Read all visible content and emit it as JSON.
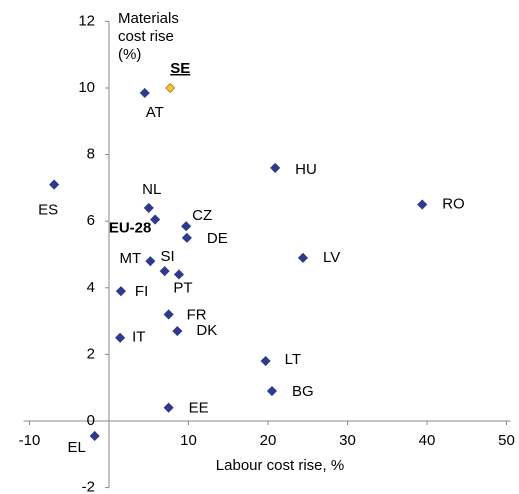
{
  "chart_data": {
    "type": "scatter",
    "y_label": [
      "Materials",
      "cost rise",
      "(%)"
    ],
    "x_label": "Labour cost rise, %",
    "labels": [
      "AT",
      "SE",
      "HU",
      "ES",
      "RO",
      "NL",
      "EU-28",
      "CZ",
      "DE",
      "LV",
      "MT",
      "SI",
      "PT",
      "FI",
      "FR",
      "DK",
      "IT",
      "LT",
      "BG",
      "EE",
      "EL"
    ],
    "x": [
      4.5,
      7.7,
      20.9,
      -6.9,
      39.4,
      5.0,
      5.8,
      9.7,
      9.8,
      24.4,
      5.2,
      7.0,
      8.8,
      1.5,
      7.5,
      8.6,
      1.4,
      19.7,
      20.5,
      7.5,
      -1.8
    ],
    "y": [
      9.85,
      10.0,
      7.6,
      7.1,
      6.5,
      6.4,
      6.05,
      5.85,
      5.5,
      4.9,
      4.8,
      4.5,
      4.4,
      3.9,
      3.2,
      2.7,
      2.5,
      1.8,
      0.9,
      0.4,
      -0.45
    ],
    "colors": [
      "#2f3b8a",
      "#f5c242",
      "#2f3b8a",
      "#2f3b8a",
      "#2f3b8a",
      "#2f3b8a",
      "#2f3b8a",
      "#2f3b8a",
      "#2f3b8a",
      "#2f3b8a",
      "#2f3b8a",
      "#2f3b8a",
      "#2f3b8a",
      "#2f3b8a",
      "#2f3b8a",
      "#2f3b8a",
      "#2f3b8a",
      "#2f3b8a",
      "#2f3b8a",
      "#2f3b8a",
      "#2f3b8a"
    ],
    "xlim": [
      -10,
      50
    ],
    "ylim": [
      -2,
      12
    ],
    "xticks": [
      -10,
      10,
      20,
      30,
      40,
      50
    ],
    "yticks": [
      -2,
      0,
      2,
      4,
      6,
      8,
      10,
      12
    ]
  }
}
